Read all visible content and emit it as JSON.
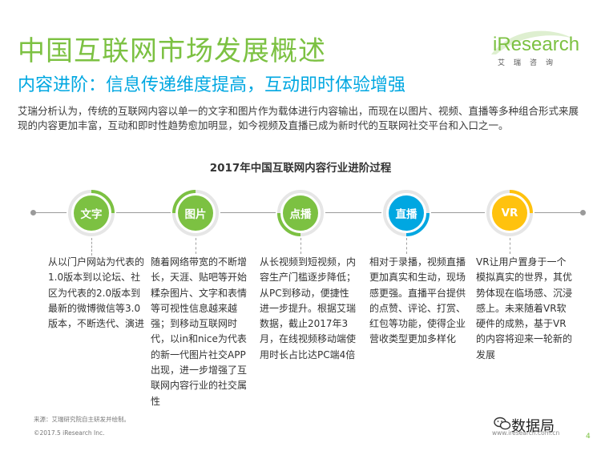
{
  "header": {
    "title": "中国互联网市场发展概述",
    "subtitle": "内容进阶：信息传递维度提高，互动即时体验增强"
  },
  "logo": {
    "name": "iResearch",
    "sub": "艾瑞咨询"
  },
  "intro": "艾瑞分析认为，传统的互联网内容以单一的文字和图片作为载体进行内容输出，而现在以图片、视频、直播等多种组合形式来展现的内容更加丰富，互动和即时性趋势愈加明显，如今视频及直播已成为新时代的互联网社交平台和入口之一。",
  "section_title": "2017年中国互联网内容行业进阶过程",
  "stages": [
    {
      "label": "文字",
      "color": "#7cc142",
      "description": "从以门户网站为代表的1.0版本到以论坛、社区为代表的2.0版本到最新的微博微信等3.0版本，不断迭代、演进"
    },
    {
      "label": "图片",
      "color": "#7cc142",
      "description": "随着网络带宽的不断增长，天涯、贴吧等开始糅杂图片、文字和表情等可视性信息越来越强；到移动互联网时代，以in和nice为代表的新一代图片社交APP出现，进一步增强了互联网内容行业的社交属性"
    },
    {
      "label": "点播",
      "color": "#7cc142",
      "description": "从长视频到短视频，内容生产门槛逐步降低；从PC到移动，便捷性进一步提升。根据艾瑞数据，截止2017年3月，在线视频移动端使用时长占比达PC端4倍"
    },
    {
      "label": "直播",
      "color": "#00a7e1",
      "description": "相对于录播，视频直播更加真实和生动，现场感更强。直播平台提供的点赞、评论、打赏、红包等功能，使得企业营收类型更加多样化"
    },
    {
      "label": "VR",
      "color": "#ffc20e",
      "description": "VR让用户置身于一个模拟真实的世界，其优势体现在临场感、沉浸感上。未来随着VR软硬件的成熟，基于VR的内容将迎来一轮新的发展"
    }
  ],
  "footer": {
    "source": "来源：艾瑞研究院自主研发并绘制。",
    "copyright": "©2017.5 iResearch Inc.",
    "website": "www.iresearch.com.cn",
    "watermark": "数据局",
    "page": "4"
  }
}
